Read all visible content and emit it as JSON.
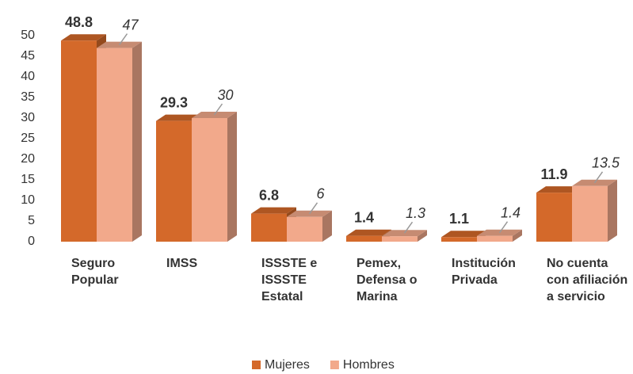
{
  "chart_data": {
    "type": "bar3d",
    "categories": [
      "Seguro Popular",
      "IMSS",
      "ISSSTE e ISSSTE Estatal",
      "Pemex, Defensa o Marina",
      "Institución Privada",
      "No cuenta con afiliación a servicio"
    ],
    "series": [
      {
        "name": "Mujeres",
        "color": "#d4692a",
        "values": [
          48.8,
          29.3,
          6.8,
          1.4,
          1.1,
          11.9
        ]
      },
      {
        "name": "Hombres",
        "color": "#f2a98b",
        "values": [
          47,
          30,
          6,
          1.3,
          1.4,
          13.5
        ]
      }
    ],
    "ylim": [
      0,
      50
    ],
    "yticks": [
      0,
      5,
      10,
      15,
      20,
      25,
      30,
      35,
      40,
      45,
      50
    ]
  }
}
